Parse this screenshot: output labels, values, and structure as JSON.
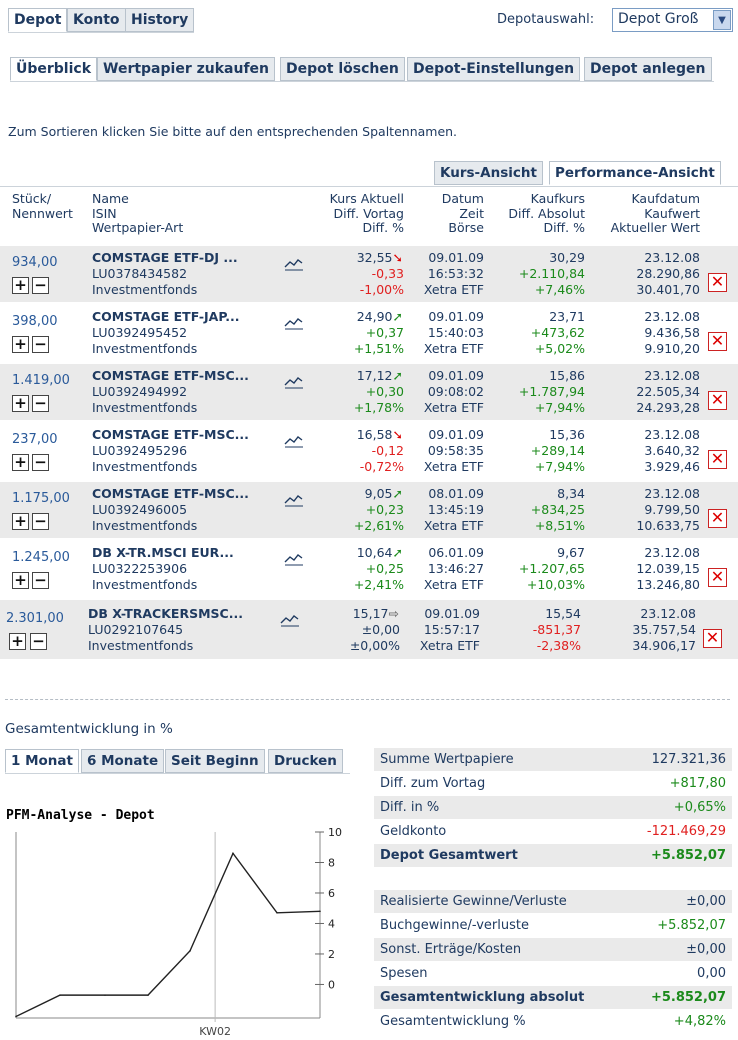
{
  "top_tabs": [
    "Depot",
    "Konto",
    "History"
  ],
  "depot_select": {
    "label": "Depotauswahl:",
    "value": "Depot Groß"
  },
  "sub_tabs": [
    "Überblick",
    "Wertpapier zukaufen",
    "Depot löschen",
    "Depot-Einstellungen",
    "Depot anlegen"
  ],
  "sort_hint": "Zum Sortieren klicken Sie bitte auf den entsprechenden Spaltennamen.",
  "view_tabs": [
    "Kurs-Ansicht",
    "Performance-Ansicht"
  ],
  "columns": {
    "qty": [
      "Stück/",
      "Nennwert"
    ],
    "name": [
      "Name",
      "ISIN",
      "Wertpapier-Art"
    ],
    "kurs": [
      "Kurs Aktuell",
      "Diff. Vortag",
      "Diff. %"
    ],
    "datum": [
      "Datum",
      "Zeit",
      "Börse"
    ],
    "kauf": [
      "Kaufkurs",
      "Diff. Absolut",
      "Diff. %"
    ],
    "kaufdatum": [
      "Kaufdatum",
      "Kaufwert",
      "Aktueller Wert"
    ]
  },
  "rows": [
    {
      "qty": "934,00",
      "name": "COMSTAGE ETF-DJ ...",
      "isin": "LU0378434582",
      "type": "Investmentfonds",
      "kurs": "32,55",
      "trend": "down",
      "diff": "-0,33",
      "diffpct": "-1,00%",
      "date": "09.01.09",
      "time": "16:53:32",
      "boerse": "Xetra ETF",
      "kaufkurs": "30,29",
      "diffabs": "+2.110,84",
      "diffabspct": "+7,46%",
      "kaufdatum": "23.12.08",
      "kaufwert": "28.290,86",
      "aktwert": "30.401,70"
    },
    {
      "qty": "398,00",
      "name": "COMSTAGE ETF-JAP...",
      "isin": "LU0392495452",
      "type": "Investmentfonds",
      "kurs": "24,90",
      "trend": "up",
      "diff": "+0,37",
      "diffpct": "+1,51%",
      "date": "09.01.09",
      "time": "15:40:03",
      "boerse": "Xetra ETF",
      "kaufkurs": "23,71",
      "diffabs": "+473,62",
      "diffabspct": "+5,02%",
      "kaufdatum": "23.12.08",
      "kaufwert": "9.436,58",
      "aktwert": "9.910,20"
    },
    {
      "qty": "1.419,00",
      "name": "COMSTAGE ETF-MSC...",
      "isin": "LU0392494992",
      "type": "Investmentfonds",
      "kurs": "17,12",
      "trend": "up",
      "diff": "+0,30",
      "diffpct": "+1,78%",
      "date": "09.01.09",
      "time": "09:08:02",
      "boerse": "Xetra ETF",
      "kaufkurs": "15,86",
      "diffabs": "+1.787,94",
      "diffabspct": "+7,94%",
      "kaufdatum": "23.12.08",
      "kaufwert": "22.505,34",
      "aktwert": "24.293,28"
    },
    {
      "qty": "237,00",
      "name": "COMSTAGE ETF-MSC...",
      "isin": "LU0392495296",
      "type": "Investmentfonds",
      "kurs": "16,58",
      "trend": "down",
      "diff": "-0,12",
      "diffpct": "-0,72%",
      "date": "09.01.09",
      "time": "09:58:35",
      "boerse": "Xetra ETF",
      "kaufkurs": "15,36",
      "diffabs": "+289,14",
      "diffabspct": "+7,94%",
      "kaufdatum": "23.12.08",
      "kaufwert": "3.640,32",
      "aktwert": "3.929,46"
    },
    {
      "qty": "1.175,00",
      "name": "COMSTAGE ETF-MSC...",
      "isin": "LU0392496005",
      "type": "Investmentfonds",
      "kurs": "9,05",
      "trend": "up",
      "diff": "+0,23",
      "diffpct": "+2,61%",
      "date": "08.01.09",
      "time": "13:45:19",
      "boerse": "Xetra ETF",
      "kaufkurs": "8,34",
      "diffabs": "+834,25",
      "diffabspct": "+8,51%",
      "kaufdatum": "23.12.08",
      "kaufwert": "9.799,50",
      "aktwert": "10.633,75"
    },
    {
      "qty": "1.245,00",
      "name": "DB X-TR.MSCI EUR...",
      "isin": "LU0322253906",
      "type": "Investmentfonds",
      "kurs": "10,64",
      "trend": "up",
      "diff": "+0,25",
      "diffpct": "+2,41%",
      "date": "06.01.09",
      "time": "13:46:27",
      "boerse": "Xetra ETF",
      "kaufkurs": "9,67",
      "diffabs": "+1.207,65",
      "diffabspct": "+10,03%",
      "kaufdatum": "23.12.08",
      "kaufwert": "12.039,15",
      "aktwert": "13.246,80"
    },
    {
      "qty": "2.301,00",
      "name": "DB X-TRACKERSMSC...",
      "isin": "LU0292107645",
      "type": "Investmentfonds",
      "kurs": "15,17",
      "trend": "flat",
      "diff": "±0,00",
      "diffpct": "±0,00%",
      "date": "09.01.09",
      "time": "15:57:17",
      "boerse": "Xetra ETF",
      "kaufkurs": "15,54",
      "diffabs": "-851,37",
      "diffabspct": "-2,38%",
      "kaufdatum": "23.12.08",
      "kaufwert": "35.757,54",
      "aktwert": "34.906,17"
    }
  ],
  "gesamt_title": "Gesamtentwicklung in %",
  "period_tabs": [
    "1 Monat",
    "6 Monate",
    "Seit Beginn",
    "Drucken"
  ],
  "chart_title": "PFM-Analyse - Depot",
  "chart_data": {
    "type": "line",
    "title": "PFM-Analyse - Depot",
    "y_ticks": [
      10,
      8,
      6,
      4,
      2,
      0
    ],
    "x_ticks": [
      "KW02"
    ],
    "ylim": [
      -2.2,
      10
    ],
    "values": [
      -2.1,
      -0.7,
      -0.7,
      -0.7,
      2.2,
      8.6,
      4.7,
      4.8
    ]
  },
  "summary1": [
    {
      "label": "Summe Wertpapiere",
      "value": "127.321,36",
      "color": "#1f3a60",
      "bold": false
    },
    {
      "label": "Diff. zum Vortag",
      "value": "+817,80",
      "color": "#1b8a1b",
      "bold": false
    },
    {
      "label": "Diff. in %",
      "value": "+0,65%",
      "color": "#1b8a1b",
      "bold": false
    },
    {
      "label": "Geldkonto",
      "value": "-121.469,29",
      "color": "#e02020",
      "bold": false
    },
    {
      "label": "Depot Gesamtwert",
      "value": "+5.852,07",
      "color": "#1b8a1b",
      "bold": true
    }
  ],
  "summary2": [
    {
      "label": "Realisierte Gewinne/Verluste",
      "value": "±0,00",
      "color": "#1f3a60",
      "bold": false
    },
    {
      "label": "Buchgewinne/-verluste",
      "value": "+5.852,07",
      "color": "#1b8a1b",
      "bold": false
    },
    {
      "label": "Sonst. Erträge/Kosten",
      "value": "±0,00",
      "color": "#1f3a60",
      "bold": false
    },
    {
      "label": "Spesen",
      "value": "0,00",
      "color": "#1f3a60",
      "bold": false
    },
    {
      "label": "Gesamtentwicklung absolut",
      "value": "+5.852,07",
      "color": "#1b8a1b",
      "bold": true
    },
    {
      "label": "Gesamtentwicklung %",
      "value": "+4,82%",
      "color": "#1b8a1b",
      "bold": false
    }
  ]
}
